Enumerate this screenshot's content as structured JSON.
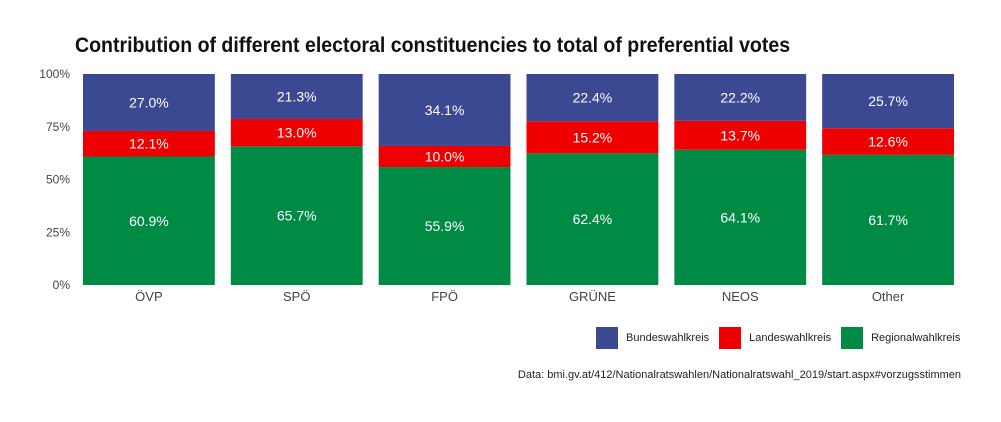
{
  "chart_data": {
    "type": "bar",
    "stacked": true,
    "title": "Contribution of different electoral constituencies to total of preferential votes",
    "xlabel": "",
    "ylabel": "",
    "categories": [
      "ÖVP",
      "SPÖ",
      "FPÖ",
      "GRÜNE",
      "NEOS",
      "Other"
    ],
    "ylim": [
      0,
      100
    ],
    "yticks": [
      "0%",
      "25%",
      "50%",
      "75%",
      "100%"
    ],
    "series": [
      {
        "name": "Regionalwahlkreis",
        "color": "#008B45",
        "values": [
          60.9,
          65.7,
          55.9,
          62.4,
          64.1,
          61.7
        ],
        "labels": [
          "60.9%",
          "65.7%",
          "55.9%",
          "62.4%",
          "64.1%",
          "61.7%"
        ]
      },
      {
        "name": "Landeswahlkreis",
        "color": "#EE0000",
        "values": [
          12.1,
          13.0,
          10.0,
          15.2,
          13.7,
          12.6
        ],
        "labels": [
          "12.1%",
          "13.0%",
          "10.0%",
          "15.2%",
          "13.7%",
          "12.6%"
        ]
      },
      {
        "name": "Bundeswahlkreis",
        "color": "#3B4992",
        "values": [
          27.0,
          21.3,
          34.1,
          22.4,
          22.2,
          25.7
        ],
        "labels": [
          "27.0%",
          "21.3%",
          "34.1%",
          "22.4%",
          "22.2%",
          "25.7%"
        ]
      }
    ],
    "legend": {
      "placement": "bottom-right",
      "items": [
        {
          "label": "Bundeswahlkreis",
          "color": "#3B4992"
        },
        {
          "label": "Landeswahlkreis",
          "color": "#EE0000"
        },
        {
          "label": "Regionalwahlkreis",
          "color": "#008B45"
        }
      ]
    },
    "grid": false,
    "caption": "Data: bmi.gv.at/412/Nationalratswahlen/Nationalratswahl_2019/start.aspx#vorzugsstimmen"
  }
}
